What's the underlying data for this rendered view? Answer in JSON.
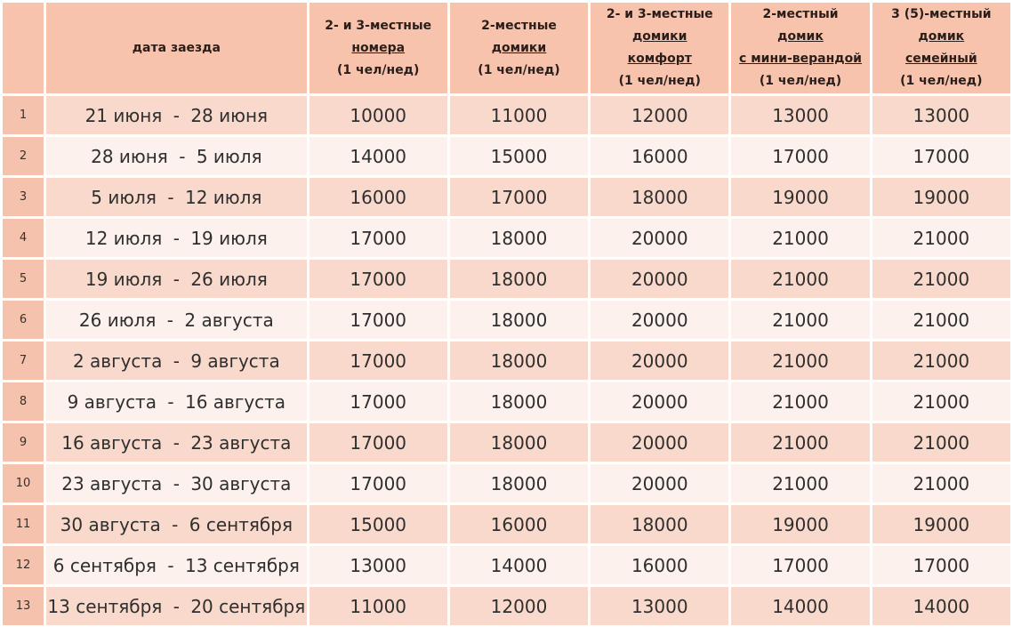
{
  "header": {
    "date_column": "дата заезда",
    "price_columns": [
      {
        "lines": [
          "2- и 3-местные",
          "номера",
          "(1 чел/нед)"
        ],
        "underlined": [
          1
        ]
      },
      {
        "lines": [
          "2-местные",
          "домики",
          "(1 чел/нед)"
        ],
        "underlined": [
          1
        ]
      },
      {
        "lines": [
          "2- и 3-местные",
          "домики",
          "комфорт",
          "(1 чел/нед)"
        ],
        "underlined": [
          1,
          2
        ]
      },
      {
        "lines": [
          "2-местный",
          "домик",
          "с мини-верандой",
          "(1 чел/нед)"
        ],
        "underlined": [
          1,
          2
        ]
      },
      {
        "lines": [
          "3 (5)-местный",
          "домик",
          "семейный",
          "(1 чел/нед)"
        ],
        "underlined": [
          1,
          2
        ]
      }
    ]
  },
  "colors": {
    "header_bg": "#f8c3ac",
    "row_odd_bg": "#f9d9cb",
    "row_even_bg": "#fcf1ec",
    "number_col_bg": "#f5c3ad"
  },
  "rows": [
    {
      "num": "1",
      "from": "21 июня",
      "to": "28 июня",
      "prices": [
        "10000",
        "11000",
        "12000",
        "13000",
        "13000"
      ]
    },
    {
      "num": "2",
      "from": "28 июня",
      "to": "5 июля",
      "prices": [
        "14000",
        "15000",
        "16000",
        "17000",
        "17000"
      ]
    },
    {
      "num": "3",
      "from": "5 июля",
      "to": "12 июля",
      "prices": [
        "16000",
        "17000",
        "18000",
        "19000",
        "19000"
      ]
    },
    {
      "num": "4",
      "from": "12 июля",
      "to": "19 июля",
      "prices": [
        "17000",
        "18000",
        "20000",
        "21000",
        "21000"
      ]
    },
    {
      "num": "5",
      "from": "19 июля",
      "to": "26 июля",
      "prices": [
        "17000",
        "18000",
        "20000",
        "21000",
        "21000"
      ]
    },
    {
      "num": "6",
      "from": "26 июля",
      "to": "2 августа",
      "prices": [
        "17000",
        "18000",
        "20000",
        "21000",
        "21000"
      ]
    },
    {
      "num": "7",
      "from": "2 августа",
      "to": "9 августа",
      "prices": [
        "17000",
        "18000",
        "20000",
        "21000",
        "21000"
      ]
    },
    {
      "num": "8",
      "from": "9 августа",
      "to": "16 августа",
      "prices": [
        "17000",
        "18000",
        "20000",
        "21000",
        "21000"
      ]
    },
    {
      "num": "9",
      "from": "16 августа",
      "to": "23 августа",
      "prices": [
        "17000",
        "18000",
        "20000",
        "21000",
        "21000"
      ]
    },
    {
      "num": "10",
      "from": "23 августа",
      "to": "30 августа",
      "prices": [
        "17000",
        "18000",
        "20000",
        "21000",
        "21000"
      ]
    },
    {
      "num": "11",
      "from": "30 августа",
      "to": "6 сентября",
      "prices": [
        "15000",
        "16000",
        "18000",
        "19000",
        "19000"
      ]
    },
    {
      "num": "12",
      "from": "6 сентября",
      "to": "13 сентября",
      "prices": [
        "13000",
        "14000",
        "16000",
        "17000",
        "17000"
      ]
    },
    {
      "num": "13",
      "from": "13 сентября",
      "to": "20 сентября",
      "prices": [
        "11000",
        "12000",
        "13000",
        "14000",
        "14000"
      ]
    }
  ]
}
